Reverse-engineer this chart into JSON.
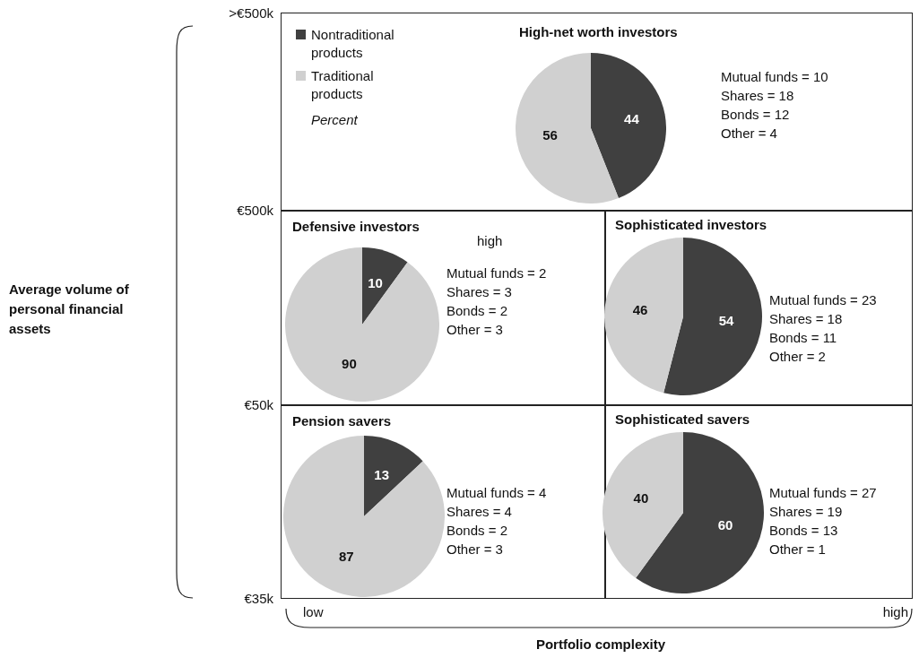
{
  "chart_data": [
    {
      "type": "pie",
      "title": "High-net worth investors",
      "categories": [
        "Nontraditional products",
        "Traditional products"
      ],
      "values": [
        44,
        56
      ],
      "colors": [
        "#404040",
        "#d0d0d0"
      ],
      "data_labels": true,
      "legend": "top left",
      "legend_title": "Percent",
      "annotations": [
        "Mutual funds = 10",
        "Shares = 18",
        "Bonds = 12",
        "Other = 4"
      ]
    },
    {
      "type": "pie",
      "title": "Defensive investors",
      "categories": [
        null,
        null
      ],
      "values": [
        10,
        90
      ],
      "colors": [
        "#404040",
        "#d0d0d0"
      ],
      "data_labels": true,
      "annotations": [
        "high",
        "Mutual funds = 2",
        "Shares = 3",
        "Bonds = 2",
        "Other = 3"
      ]
    },
    {
      "type": "pie",
      "title": "Sophisticated investors",
      "categories": [
        null,
        null
      ],
      "values": [
        54,
        46
      ],
      "colors": [
        "#404040",
        "#d0d0d0"
      ],
      "data_labels": true,
      "annotations": [
        "Mutual funds = 23",
        "Shares = 18",
        "Bonds = 11",
        "Other = 2"
      ]
    },
    {
      "type": "pie",
      "title": "Pension savers",
      "categories": [
        null,
        null
      ],
      "values": [
        13,
        87
      ],
      "colors": [
        "#404040",
        "#d0d0d0"
      ],
      "data_labels": true,
      "annotations": [
        "Mutual funds = 4",
        "Shares = 4",
        "Bonds = 2",
        "Other = 3"
      ]
    },
    {
      "type": "pie",
      "title": "Sophisticated savers",
      "categories": [
        null,
        null
      ],
      "values": [
        60,
        40
      ],
      "colors": [
        "#404040",
        "#d0d0d0"
      ],
      "data_labels": true,
      "annotations": [
        "Mutual funds = 27",
        "Shares = 19",
        "Bonds = 13",
        "Other = 1"
      ]
    },
    {
      "type": "other",
      "ylabel": "Average volume of personal financial assets",
      "xlabel": "Portfolio complexity",
      "annotations": [
        ">€500k",
        "€500k",
        "€50k",
        "€35k",
        "low",
        "high"
      ]
    }
  ]
}
